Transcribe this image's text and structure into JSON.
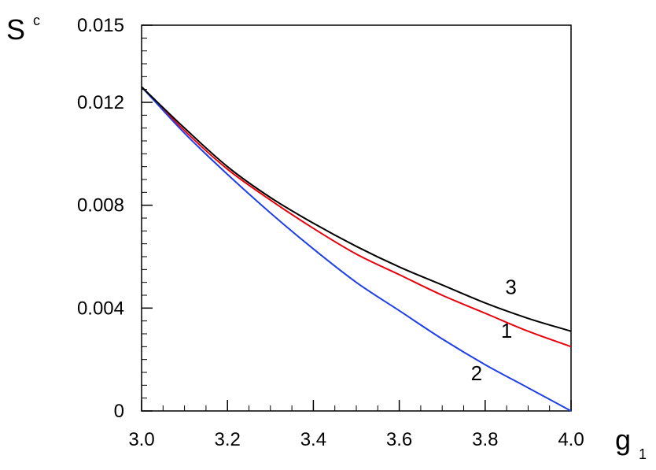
{
  "chart_data": {
    "type": "line",
    "title": "",
    "xlabel": "g",
    "xlabel_subscript": "1",
    "ylabel": "S",
    "ylabel_superscript": "c",
    "xlim": [
      3.0,
      4.0
    ],
    "ylim": [
      0,
      0.015
    ],
    "x_ticks": [
      3.0,
      3.2,
      3.4,
      3.6,
      3.8,
      4.0
    ],
    "x_tick_labels": [
      "3.0",
      "3.2",
      "3.4",
      "3.6",
      "3.8",
      "4.0"
    ],
    "y_ticks": [
      0,
      0.004,
      0.008,
      0.012,
      0.015
    ],
    "y_tick_labels": [
      "0",
      "0.004",
      "0.008",
      "0.012",
      "0.015"
    ],
    "grid": false,
    "legend": "none",
    "x": [
      3.0,
      3.1,
      3.2,
      3.3,
      3.4,
      3.5,
      3.6,
      3.7,
      3.8,
      3.9,
      4.0
    ],
    "series": [
      {
        "label": "1",
        "color": "#e8000b",
        "values": [
          0.0126,
          0.0109,
          0.0094,
          0.0082,
          0.0071,
          0.0061,
          0.0053,
          0.0045,
          0.0038,
          0.0031,
          0.0025
        ]
      },
      {
        "label": "2",
        "color": "#1f3fe8",
        "values": [
          0.0126,
          0.0108,
          0.0092,
          0.0077,
          0.0063,
          0.005,
          0.0039,
          0.0028,
          0.0018,
          0.0009,
          0.0
        ]
      },
      {
        "label": "3",
        "color": "#000000",
        "values": [
          0.0126,
          0.011,
          0.0095,
          0.0083,
          0.0073,
          0.0064,
          0.0056,
          0.0049,
          0.0042,
          0.0036,
          0.0031
        ]
      }
    ]
  }
}
